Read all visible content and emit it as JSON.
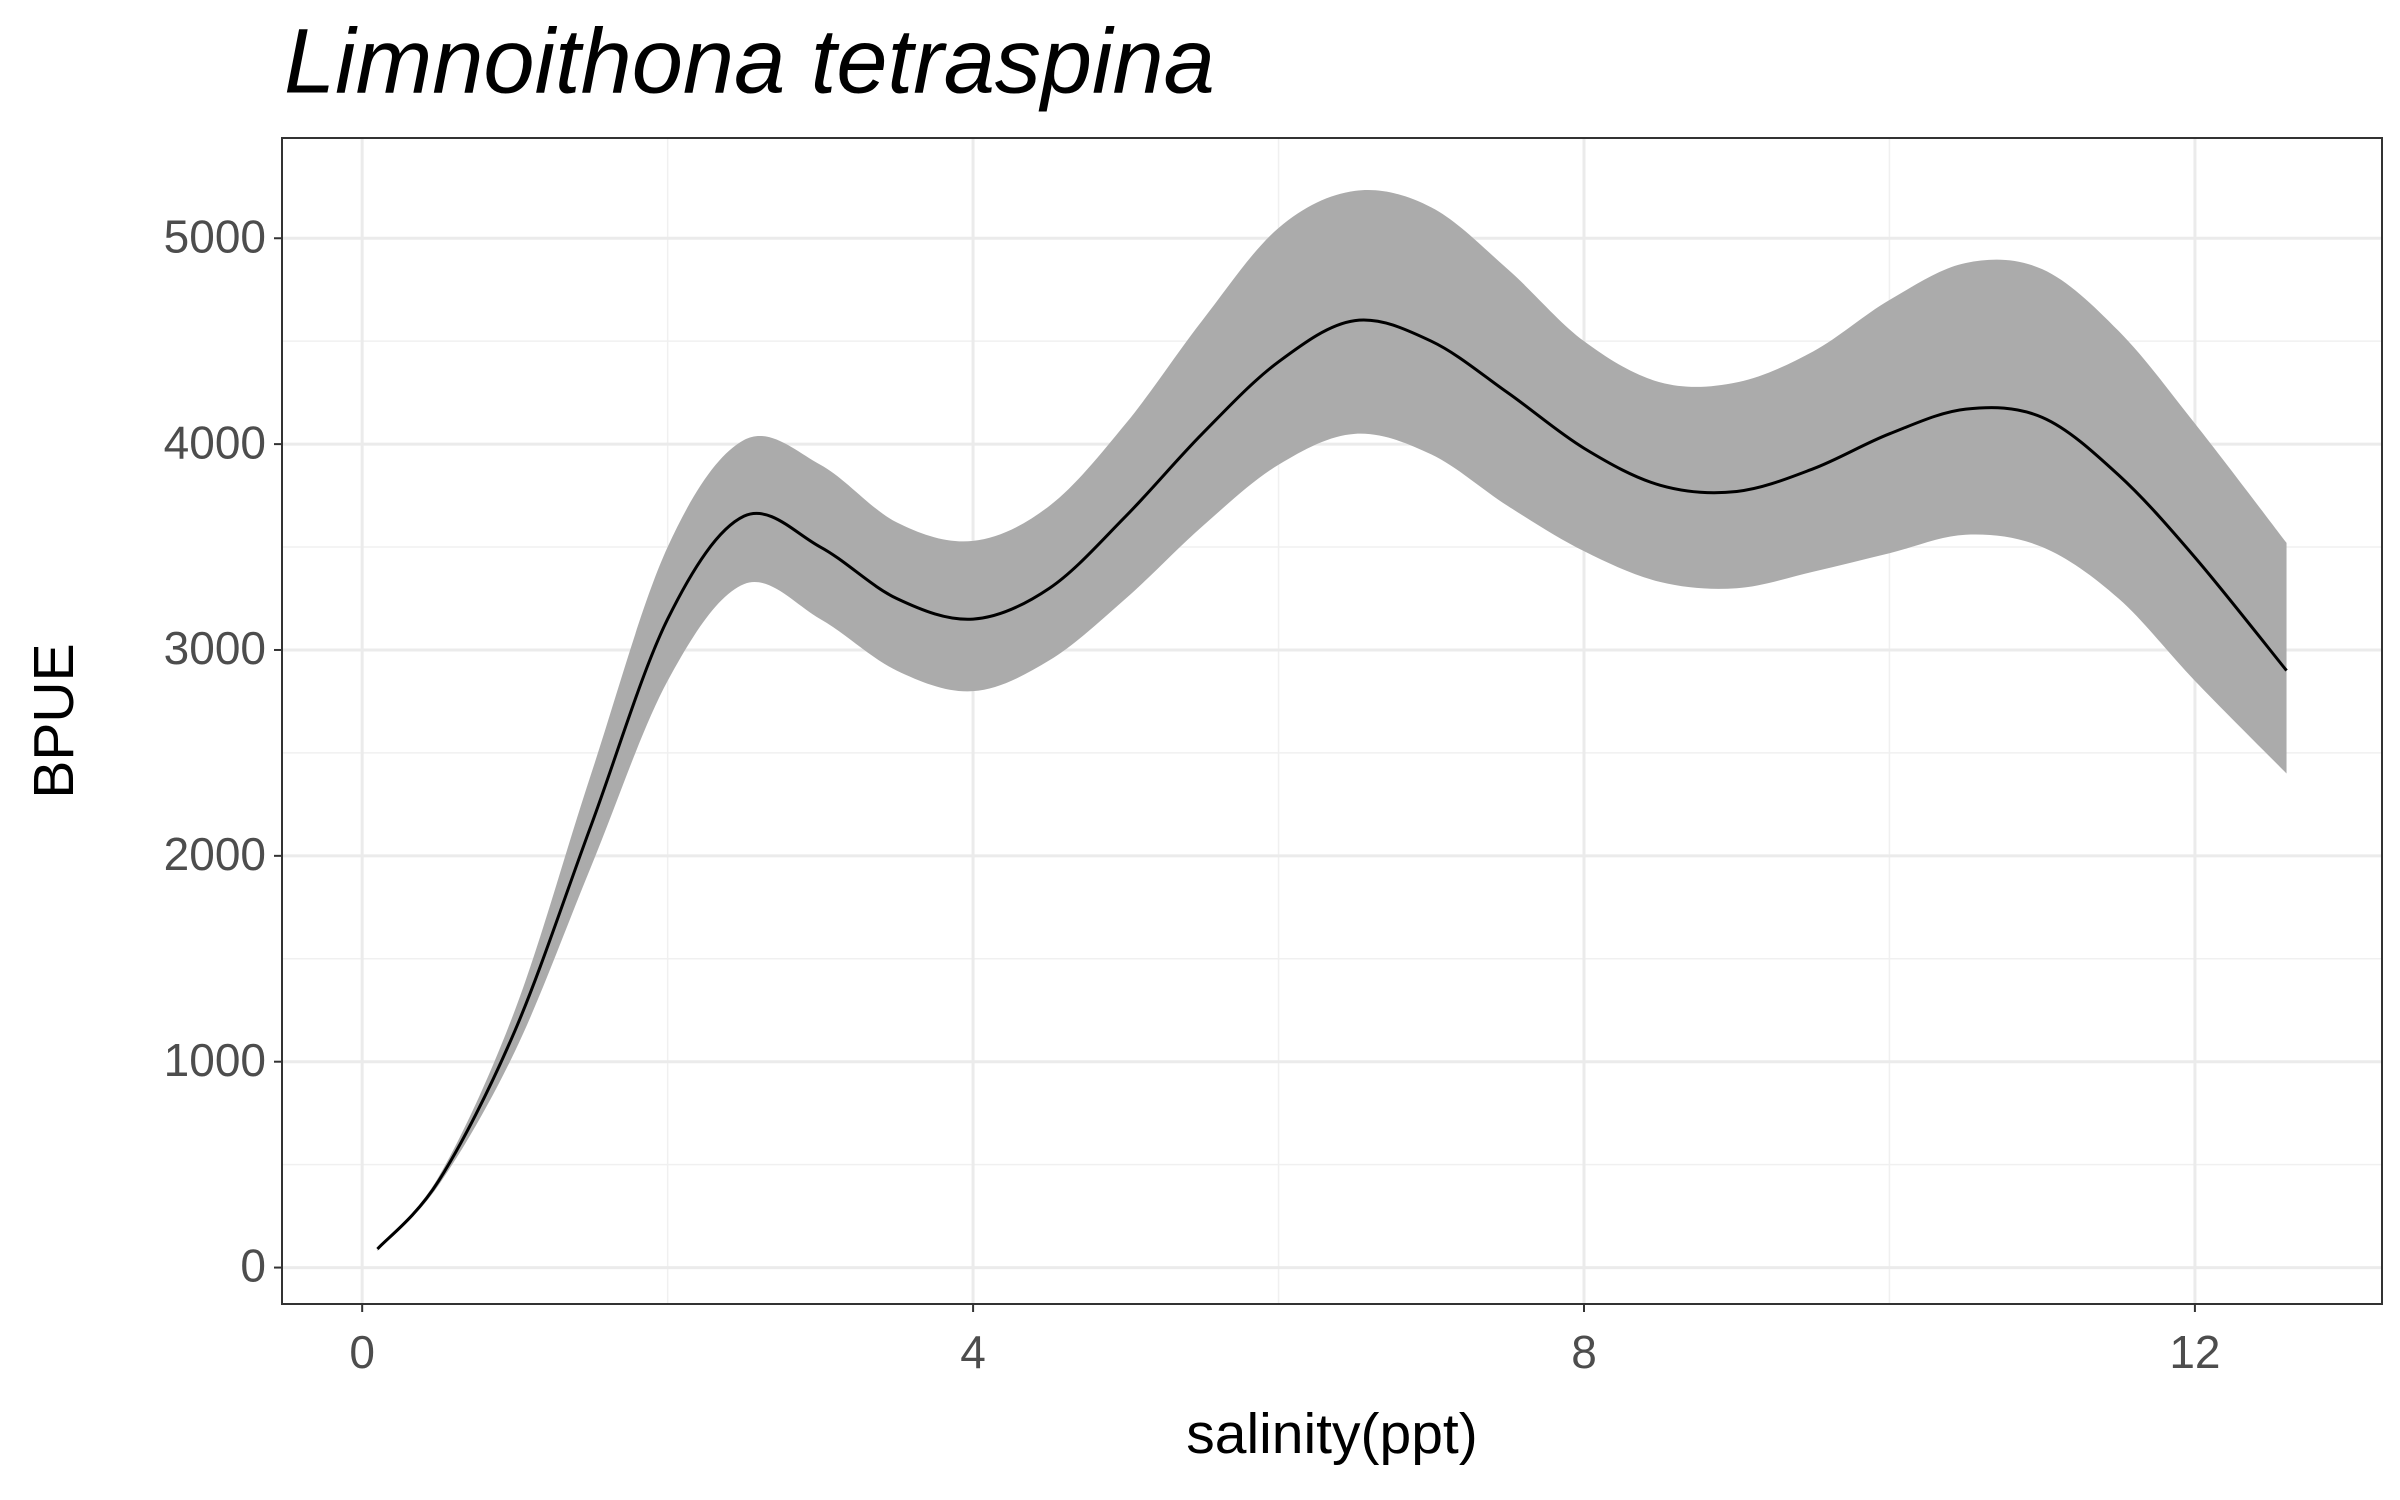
{
  "chart_data": {
    "type": "line",
    "title": "Limnoithona tetraspina",
    "x_label": "salinity(ppt)",
    "y_label": "BPUE",
    "x": [
      0.1,
      0.5,
      1.0,
      1.5,
      2.0,
      2.5,
      3.0,
      3.5,
      4.0,
      4.5,
      5.0,
      5.5,
      6.0,
      6.5,
      7.0,
      7.5,
      8.0,
      8.5,
      9.0,
      9.5,
      10.0,
      10.5,
      11.0,
      11.5,
      12.0,
      12.6
    ],
    "values": [
      90,
      420,
      1150,
      2150,
      3150,
      3650,
      3500,
      3250,
      3150,
      3300,
      3650,
      4050,
      4400,
      4600,
      4500,
      4250,
      3980,
      3800,
      3770,
      3880,
      4050,
      4170,
      4130,
      3850,
      3450,
      2900
    ],
    "upper": [
      100,
      440,
      1250,
      2400,
      3500,
      4020,
      3900,
      3620,
      3530,
      3700,
      4100,
      4600,
      5050,
      5230,
      5150,
      4850,
      4500,
      4300,
      4300,
      4450,
      4700,
      4880,
      4850,
      4550,
      4100,
      3520
    ],
    "lower": [
      80,
      400,
      1050,
      1950,
      2850,
      3320,
      3150,
      2900,
      2800,
      2950,
      3250,
      3600,
      3900,
      4050,
      3950,
      3700,
      3480,
      3330,
      3300,
      3380,
      3470,
      3560,
      3500,
      3250,
      2850,
      2400
    ],
    "color": "#000000",
    "band_color": "#ababab",
    "xlim": [
      -0.525,
      13.225
    ],
    "ylim": [
      -177,
      5487
    ],
    "xticks": [
      0,
      4,
      8,
      12
    ],
    "yticks": [
      0,
      1000,
      2000,
      3000,
      4000,
      5000
    ],
    "minor_xticks": [
      2,
      6,
      10
    ],
    "minor_yticks": [
      500,
      1500,
      2500,
      3500,
      4500
    ],
    "grid": true
  }
}
